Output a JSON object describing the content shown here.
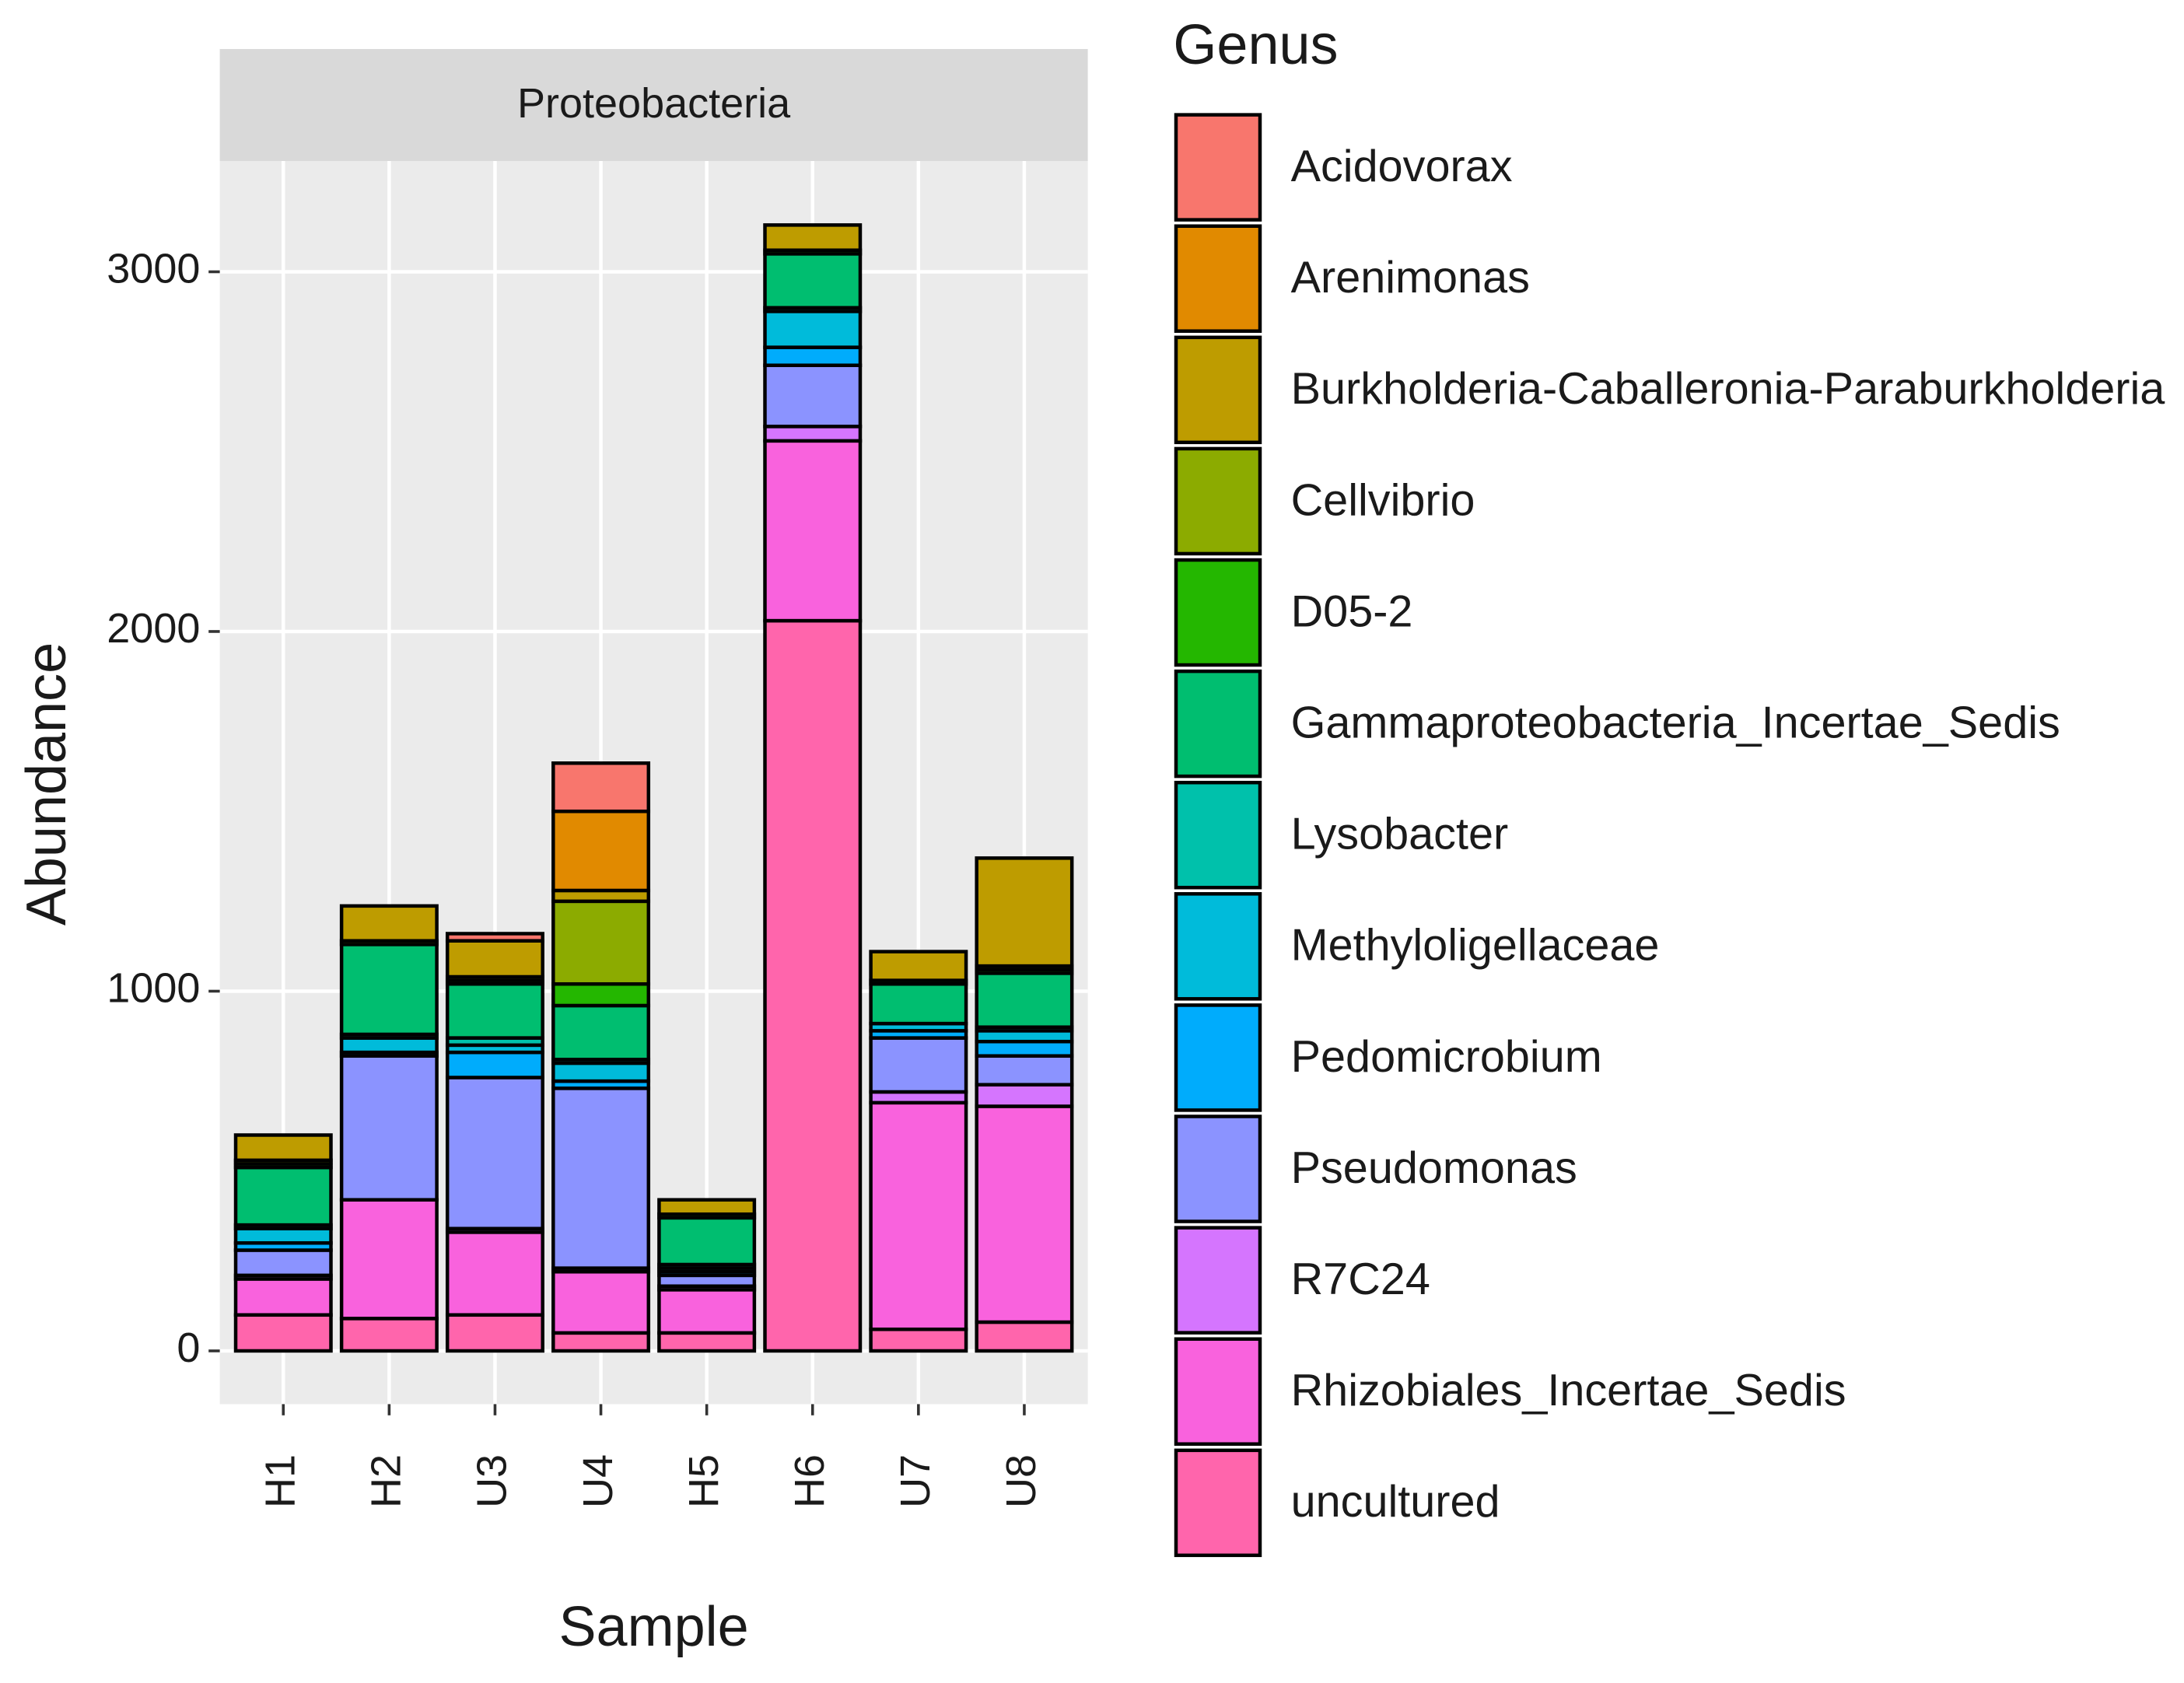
{
  "chart_data": {
    "type": "stacked_bar",
    "facet": "Proteobacteria",
    "x_label": "Sample",
    "y_label": "Abundance",
    "legend_title": "Genus",
    "categories": [
      "H1",
      "H2",
      "U3",
      "U4",
      "H5",
      "H6",
      "U7",
      "U8"
    ],
    "series": [
      {
        "name": "Acidovorax",
        "color": "#F8766D",
        "values": [
          0,
          0,
          20,
          134,
          0,
          0,
          0,
          0
        ]
      },
      {
        "name": "Arenimonas",
        "color": "#E18A00",
        "values": [
          0,
          0,
          0,
          220,
          0,
          0,
          0,
          0
        ]
      },
      {
        "name": "Burkholderia-Caballeronia-Paraburkholderia",
        "color": "#BE9C00",
        "values": [
          70,
          97,
          100,
          30,
          40,
          70,
          80,
          300
        ]
      },
      {
        "name": "Cellvibrio",
        "color": "#8CAB00",
        "values": [
          10,
          10,
          10,
          230,
          0,
          0,
          0,
          10
        ]
      },
      {
        "name": "D05-2",
        "color": "#24B700",
        "values": [
          10,
          0,
          10,
          60,
          10,
          10,
          10,
          10
        ]
      },
      {
        "name": "Gammaproteobacteria_Incertae_Sedis",
        "color": "#00BE70",
        "values": [
          160,
          250,
          150,
          150,
          130,
          150,
          110,
          150
        ]
      },
      {
        "name": "Lysobacter",
        "color": "#00C1AB",
        "values": [
          10,
          10,
          20,
          10,
          10,
          10,
          0,
          10
        ]
      },
      {
        "name": "Methyloligellaceae",
        "color": "#00BBDA",
        "values": [
          40,
          40,
          20,
          50,
          10,
          100,
          20,
          30
        ]
      },
      {
        "name": "Pedomicrobium",
        "color": "#00ACFC",
        "values": [
          20,
          10,
          70,
          20,
          10,
          50,
          20,
          40
        ]
      },
      {
        "name": "Pseudomonas",
        "color": "#8B93FF",
        "values": [
          70,
          400,
          420,
          500,
          30,
          170,
          150,
          80
        ]
      },
      {
        "name": "R7C24",
        "color": "#D575FE",
        "values": [
          10,
          0,
          10,
          10,
          10,
          40,
          30,
          60
        ]
      },
      {
        "name": "Rhizobiales_Incertae_Sedis",
        "color": "#F962DD",
        "values": [
          100,
          330,
          230,
          170,
          120,
          500,
          630,
          600
        ]
      },
      {
        "name": "uncultured",
        "color": "#FF65AC",
        "values": [
          100,
          90,
          100,
          50,
          50,
          2030,
          60,
          80
        ]
      }
    ],
    "ylim": [
      -148,
      3308
    ],
    "yticks": [
      0,
      1000,
      2000,
      3000
    ],
    "grid": true
  }
}
